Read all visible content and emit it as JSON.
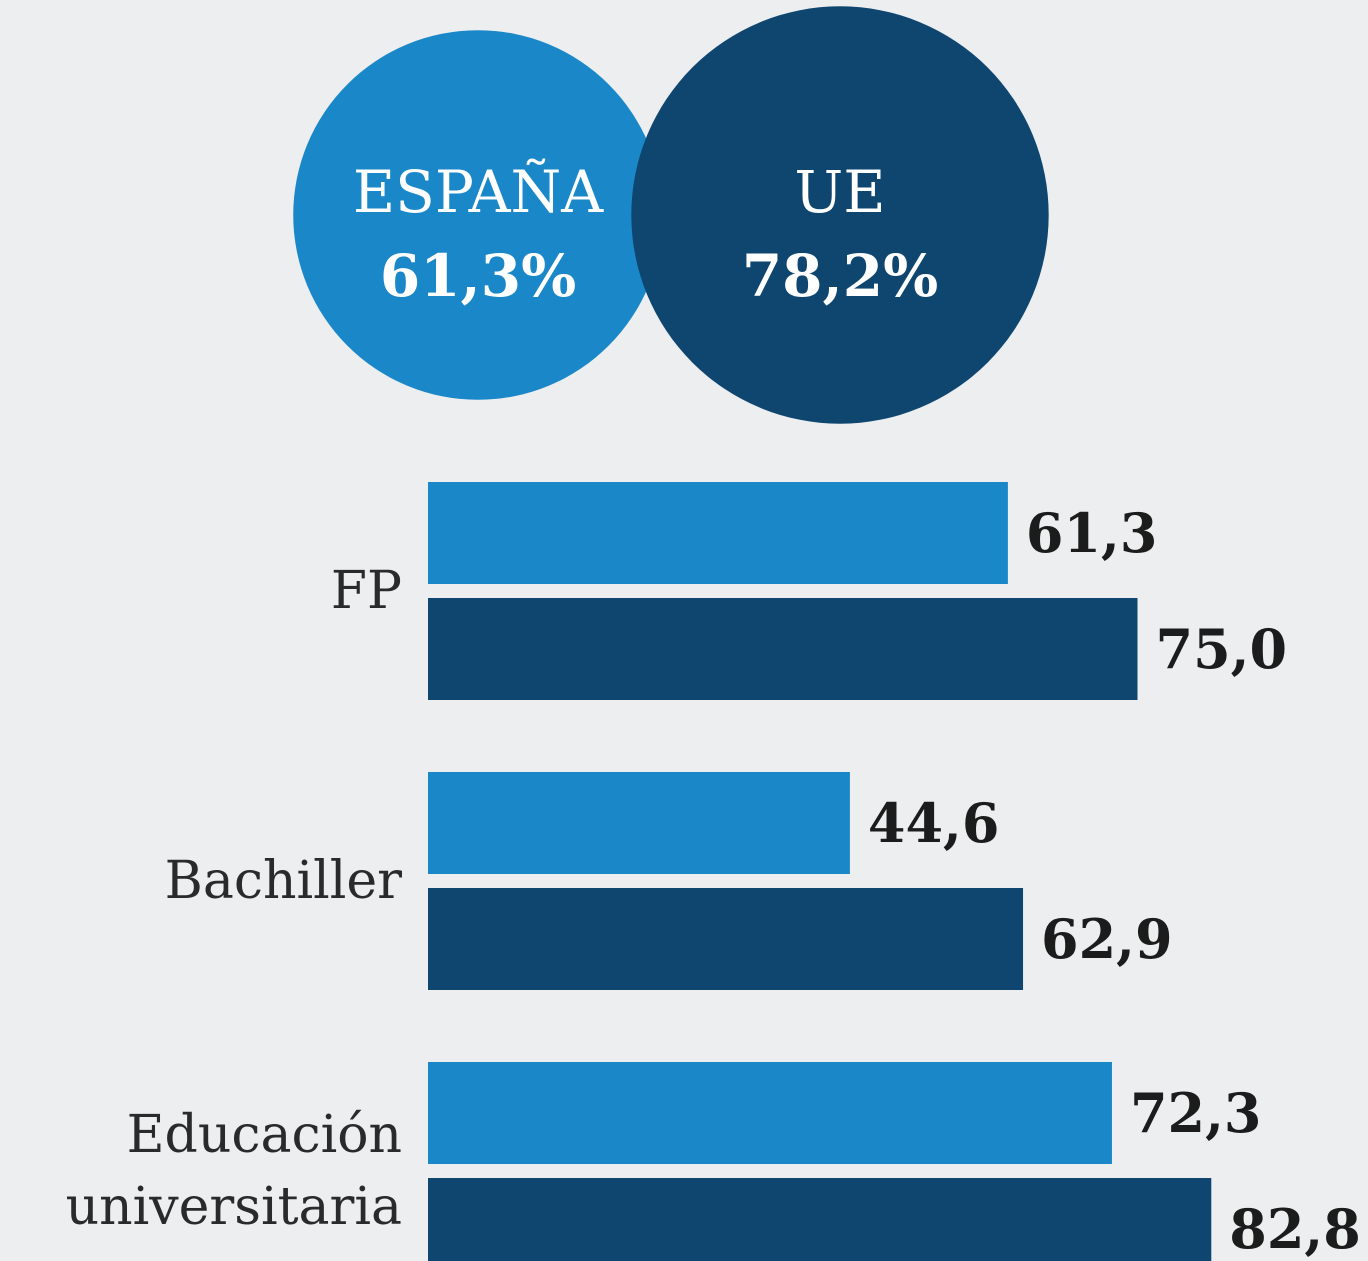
{
  "chart_data": {
    "type": "bar",
    "orientation": "horizontal",
    "categories": [
      "FP",
      "Bachiller",
      "Educación universitaria"
    ],
    "series": [
      {
        "name": "ESPAÑA",
        "color": "#1a87c9",
        "values": [
          61.3,
          44.6,
          72.3
        ],
        "value_labels": [
          "61,3",
          "44,6",
          "72,3"
        ],
        "total": 61.3,
        "total_label": "61,3%"
      },
      {
        "name": "UE",
        "color": "#0e4670",
        "values": [
          75.0,
          62.9,
          82.8
        ],
        "value_labels": [
          "75,0",
          "62,9",
          "82,8"
        ],
        "total": 78.2,
        "total_label": "78,2%"
      }
    ]
  }
}
